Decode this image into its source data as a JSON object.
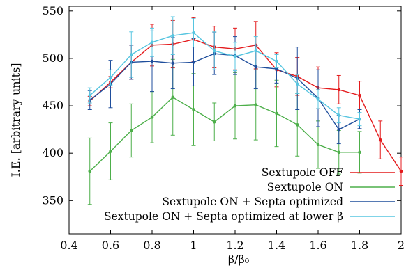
{
  "chart_data": {
    "type": "line",
    "title": "",
    "xlabel": "β/β₀",
    "ylabel": "I.E. [arbitrary units]",
    "xlim": [
      0.4,
      2.0
    ],
    "ylim": [
      315,
      555
    ],
    "xticks": [
      0.4,
      0.6,
      0.8,
      1.0,
      1.2,
      1.4,
      1.6,
      1.8,
      2.0
    ],
    "xtick_labels": [
      "0.4",
      "0.6",
      "0.8",
      "1",
      "1.2",
      "1.4",
      "1.6",
      "1.8",
      "2"
    ],
    "yticks": [
      350,
      400,
      450,
      500,
      550
    ],
    "ytick_labels": [
      "350",
      "400",
      "450",
      "500",
      "550"
    ],
    "grid": false,
    "legend_position": "bottom-right",
    "series": [
      {
        "name": "Sextupole OFF",
        "color": "#e41a1c",
        "x": [
          0.5,
          0.6,
          0.7,
          0.8,
          0.9,
          1.0,
          1.1,
          1.2,
          1.3,
          1.4,
          1.5,
          1.6,
          1.7,
          1.8,
          1.9,
          2.0
        ],
        "y": [
          455,
          475,
          496,
          514,
          515,
          520,
          512,
          510,
          514,
          488,
          481,
          469,
          467,
          461,
          414,
          381
        ],
        "err": [
          5,
          6,
          18,
          22,
          25,
          23,
          22,
          22,
          25,
          18,
          20,
          22,
          15,
          15,
          20,
          15
        ]
      },
      {
        "name": "Sextupole ON",
        "color": "#4daf4a",
        "x": [
          0.5,
          0.6,
          0.7,
          0.8,
          0.9,
          1.0,
          1.1,
          1.2,
          1.3,
          1.4,
          1.5,
          1.6,
          1.7,
          1.8
        ],
        "y": [
          381,
          402,
          424,
          438,
          459,
          446,
          433,
          450,
          451,
          442,
          430,
          409,
          401,
          401
        ],
        "err": [
          35,
          30,
          28,
          27,
          40,
          38,
          20,
          35,
          37,
          35,
          33,
          25,
          23,
          22
        ]
      },
      {
        "name": "Sextupole ON + Septa optimized",
        "color": "#1f4e9c",
        "x": [
          0.5,
          0.6,
          0.7,
          0.8,
          0.9,
          1.0,
          1.1,
          1.2,
          1.3,
          1.4,
          1.5,
          1.6,
          1.7,
          1.8
        ],
        "y": [
          456,
          473,
          496,
          497,
          495,
          496,
          505,
          503,
          491,
          489,
          479,
          458,
          425,
          436
        ],
        "err": [
          10,
          25,
          18,
          32,
          27,
          25,
          22,
          20,
          23,
          15,
          33,
          30,
          15,
          10
        ]
      },
      {
        "name": "Sextupole ON + Septa optimized at lower β",
        "color": "#56c5e0",
        "x": [
          0.5,
          0.6,
          0.7,
          0.8,
          0.9,
          1.0,
          1.1,
          1.2,
          1.3,
          1.4,
          1.5,
          1.6,
          1.7,
          1.8
        ],
        "y": [
          461,
          480,
          504,
          517,
          524,
          527,
          508,
          502,
          508,
          497,
          473,
          457,
          440,
          436
        ],
        "err": [
          8,
          8,
          24,
          15,
          20,
          15,
          20,
          15,
          15,
          7,
          10,
          10,
          8,
          7
        ]
      }
    ]
  }
}
